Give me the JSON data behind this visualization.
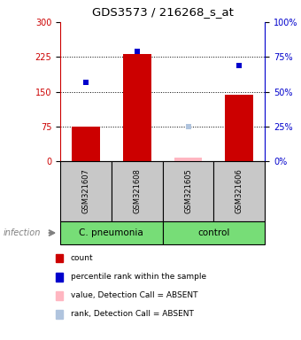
{
  "title": "GDS3573 / 216268_s_at",
  "samples": [
    "GSM321607",
    "GSM321608",
    "GSM321605",
    "GSM321606"
  ],
  "counts": [
    75,
    232,
    8,
    143
  ],
  "percentile_ranks": [
    57,
    79,
    25,
    69
  ],
  "detection_call": [
    "P",
    "P",
    "A",
    "P"
  ],
  "rank_absent": [
    null,
    null,
    true,
    null
  ],
  "bar_color": "#CC0000",
  "bar_color_absent": "#FFB6C1",
  "dot_color": "#0000CC",
  "dot_color_absent": "#B0C4DE",
  "ylim_left": [
    0,
    300
  ],
  "ylim_right": [
    0,
    100
  ],
  "yticks_left": [
    0,
    75,
    150,
    225,
    300
  ],
  "yticks_right": [
    0,
    25,
    50,
    75,
    100
  ],
  "ytick_labels_left": [
    "0",
    "75",
    "150",
    "225",
    "300"
  ],
  "ytick_labels_right": [
    "0%",
    "25%",
    "50%",
    "75%",
    "100%"
  ],
  "hlines": [
    75,
    150,
    225
  ],
  "left_tick_color": "#CC0000",
  "right_tick_color": "#0000CC",
  "legend_items": [
    {
      "color": "#CC0000",
      "label": "count"
    },
    {
      "color": "#0000CC",
      "label": "percentile rank within the sample"
    },
    {
      "color": "#FFB6C1",
      "label": "value, Detection Call = ABSENT"
    },
    {
      "color": "#B0C4DE",
      "label": "rank, Detection Call = ABSENT"
    }
  ],
  "cpn_group_label": "C. pneumonia",
  "ctrl_group_label": "control",
  "infection_label": "infection",
  "green_color": "#77DD77",
  "gray_color": "#C8C8C8",
  "plot_bg": "#FFFFFF",
  "fig_width": 3.4,
  "fig_height": 3.84,
  "dpi": 100
}
